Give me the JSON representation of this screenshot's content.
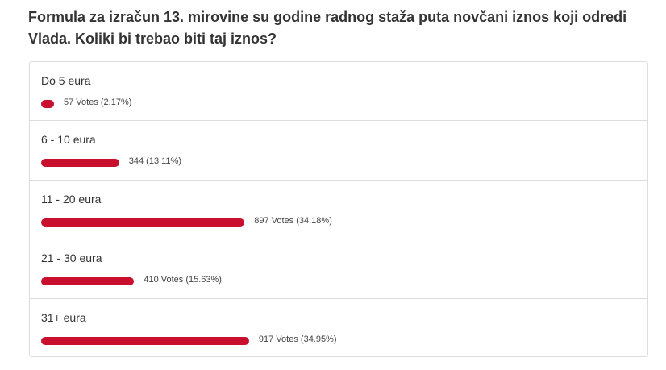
{
  "poll": {
    "question": "Formula za izračun 13. mirovine su godine radnog staža puta novčani iznos koji odredi Vlada. Koliki bi trebao biti taj iznos?",
    "bar_color": "#c8102e",
    "options": [
      {
        "label": "Do 5 eura",
        "percent": 2.17,
        "vote_label": "57 Votes (2.17%)"
      },
      {
        "label": "6 - 10 eura",
        "percent": 13.11,
        "vote_label": "344 (13.11%)"
      },
      {
        "label": "11 - 20 eura",
        "percent": 34.18,
        "vote_label": "897 Votes (34.18%)"
      },
      {
        "label": "21 - 30 eura",
        "percent": 15.63,
        "vote_label": "410 Votes (15.63%)"
      },
      {
        "label": "31+ eura",
        "percent": 34.95,
        "vote_label": "917 Votes (34.95%)"
      }
    ]
  }
}
